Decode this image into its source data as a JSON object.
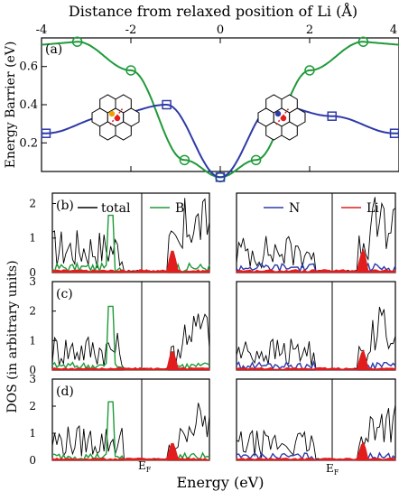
{
  "figure": {
    "top_axis_title": "Distance from relaxed position of Li (Å)",
    "xlabel_bottom": "Energy (eV)",
    "ylabel_top": "Energy Barrier (eV)",
    "ylabel_bottom": "DOS (in arbitrary units)",
    "ef_label_left": "E",
    "ef_label_right": "E",
    "ef_subscript": "F"
  },
  "colors": {
    "green": "#1f9a3a",
    "blue": "#2e3aa8",
    "red": "#e11d1d",
    "black": "#000000",
    "dark_green": "#0f6b25"
  },
  "chart_data": [
    {
      "type": "line",
      "panel": "(a)",
      "xlim": [
        -4,
        4
      ],
      "ylim": [
        0.05,
        0.75
      ],
      "x_ticks": [
        "-4",
        "-2",
        "0",
        "2",
        "4"
      ],
      "y_ticks": [
        "0.2",
        "0.4",
        "0.6"
      ],
      "series": [
        {
          "color": "green",
          "marker": "circle",
          "points": [
            [
              -3.2,
              0.73
            ],
            [
              -2.0,
              0.58
            ],
            [
              -0.8,
              0.11
            ],
            [
              0,
              0.02
            ],
            [
              0.8,
              0.11
            ],
            [
              2.0,
              0.58
            ],
            [
              3.2,
              0.73
            ]
          ]
        },
        {
          "color": "blue",
          "marker": "square",
          "points": [
            [
              -3.9,
              0.25
            ],
            [
              -2.5,
              0.34
            ],
            [
              -1.2,
              0.4
            ],
            [
              0,
              0.02
            ],
            [
              1.2,
              0.4
            ],
            [
              2.5,
              0.34
            ],
            [
              3.9,
              0.25
            ]
          ]
        }
      ]
    },
    {
      "type": "line",
      "panel": "(b)",
      "legend": [
        {
          "label": "total",
          "color": "black"
        },
        {
          "label": "B",
          "color": "green"
        },
        {
          "label": "N",
          "color": "blue"
        },
        {
          "label": "Li",
          "color": "red"
        }
      ],
      "y_ticks": [
        "0",
        "1",
        "2"
      ],
      "ylim": [
        0,
        2.3
      ]
    },
    {
      "type": "line",
      "panel": "(c)",
      "y_ticks": [
        "0",
        "1",
        "2",
        "3"
      ],
      "ylim": [
        0,
        3.0
      ]
    },
    {
      "type": "line",
      "panel": "(d)",
      "y_ticks": [
        "0",
        "1",
        "2",
        "3"
      ],
      "ylim": [
        0,
        3.0
      ]
    }
  ],
  "panels": {
    "a": "(a)",
    "b": "(b)",
    "c": "(c)",
    "d": "(d)"
  },
  "legend_labels": {
    "total": "total",
    "B": "B",
    "N": "N",
    "Li": "Li"
  }
}
